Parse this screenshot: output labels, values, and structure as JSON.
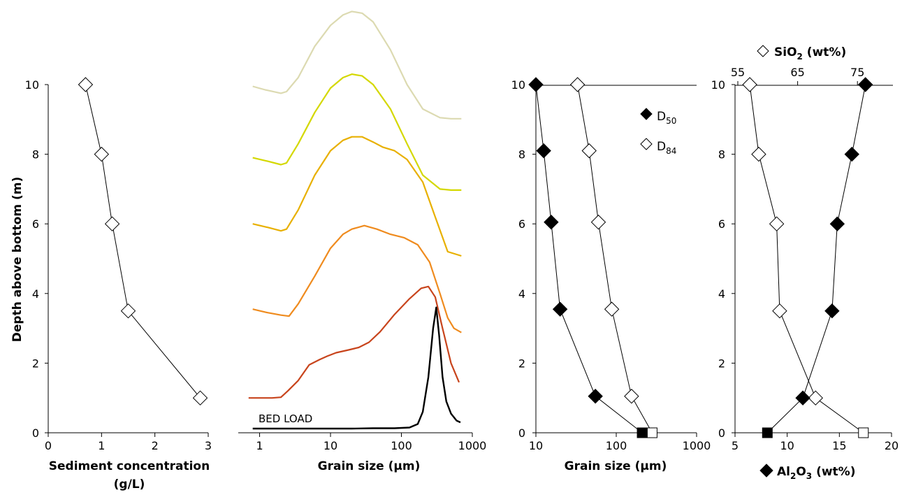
{
  "chart_data": [
    {
      "type": "line",
      "panel": "sediment-concentration",
      "xlabel": "Sediment concentration",
      "xlabel_units": "(g/L)",
      "ylabel": "Depth above bottom (m)",
      "xlim": [
        0,
        3
      ],
      "ylim": [
        0,
        10
      ],
      "xticks": [
        "0",
        "1",
        "2",
        "3"
      ],
      "yticks": [
        "0",
        "2",
        "4",
        "6",
        "8",
        "10"
      ],
      "series": [
        {
          "marker": "open-diamond",
          "x": [
            0.7,
            1.0,
            1.2,
            1.5,
            2.85
          ],
          "y": [
            10.0,
            8.0,
            6.0,
            3.5,
            1.0
          ]
        }
      ]
    },
    {
      "type": "line",
      "panel": "grain-size-distributions",
      "xlabel": "Grain size (µm)",
      "xscale": "log",
      "xlim": [
        0.5,
        1000
      ],
      "xticks": [
        "1",
        "10",
        "100",
        "1000"
      ],
      "annotations": [
        "BED LOAD"
      ],
      "colors": [
        "#dcdab1",
        "#d4d800",
        "#e8b000",
        "#ef8b1e",
        "#c8441c",
        "#000000"
      ],
      "series": [
        {
          "offset_depth_m": 10,
          "color": "#dcdab1",
          "x": [
            0.8,
            1.2,
            2.0,
            2.4,
            3.5,
            6,
            10,
            15,
            20,
            28,
            40,
            70,
            120,
            200,
            350,
            500,
            700
          ],
          "y": [
            9.95,
            9.85,
            9.75,
            9.8,
            10.2,
            11.1,
            11.7,
            12.0,
            12.1,
            12.05,
            11.8,
            11.0,
            10.0,
            9.3,
            9.05,
            9.02,
            9.02
          ]
        },
        {
          "offset_depth_m": 8,
          "color": "#d4d800",
          "x": [
            0.8,
            1.3,
            2.0,
            2.4,
            3.5,
            6,
            10,
            15,
            20,
            28,
            40,
            70,
            120,
            200,
            350,
            500,
            700
          ],
          "y": [
            7.9,
            7.8,
            7.7,
            7.75,
            8.3,
            9.2,
            9.9,
            10.2,
            10.3,
            10.25,
            10.0,
            9.3,
            8.3,
            7.4,
            7.0,
            6.97,
            6.97
          ]
        },
        {
          "offset_depth_m": 6,
          "color": "#e8b000",
          "x": [
            0.8,
            1.3,
            2.0,
            2.4,
            3.5,
            6,
            10,
            15,
            20,
            28,
            40,
            55,
            80,
            120,
            200,
            300,
            450,
            700
          ],
          "y": [
            6.0,
            5.9,
            5.8,
            5.85,
            6.4,
            7.4,
            8.1,
            8.4,
            8.5,
            8.5,
            8.35,
            8.2,
            8.1,
            7.85,
            7.2,
            6.2,
            5.2,
            5.08
          ]
        },
        {
          "offset_depth_m": 4,
          "color": "#ef8b1e",
          "x": [
            0.8,
            1.3,
            2.0,
            2.6,
            3.5,
            6,
            10,
            15,
            20,
            30,
            45,
            70,
            110,
            170,
            250,
            350,
            450,
            550,
            700
          ],
          "y": [
            3.55,
            3.45,
            3.38,
            3.35,
            3.7,
            4.5,
            5.3,
            5.7,
            5.85,
            5.95,
            5.85,
            5.7,
            5.6,
            5.4,
            4.9,
            4.0,
            3.3,
            3.0,
            2.88
          ]
        },
        {
          "offset_depth_m": 1,
          "color": "#c8441c",
          "x": [
            0.7,
            1.0,
            1.5,
            2.0,
            2.5,
            3.5,
            5,
            7,
            9,
            12,
            18,
            25,
            35,
            50,
            80,
            130,
            190,
            240,
            300,
            380,
            500,
            650
          ],
          "y": [
            1.0,
            1.0,
            1.0,
            1.02,
            1.2,
            1.5,
            1.95,
            2.1,
            2.2,
            2.3,
            2.38,
            2.45,
            2.6,
            2.9,
            3.4,
            3.85,
            4.15,
            4.2,
            3.9,
            3.0,
            2.0,
            1.45
          ]
        },
        {
          "label": "BED LOAD",
          "color": "#000000",
          "x": [
            0.8,
            2,
            5,
            10,
            20,
            40,
            80,
            130,
            170,
            200,
            240,
            280,
            310,
            340,
            380,
            430,
            500,
            600,
            680
          ],
          "y": [
            0.12,
            0.12,
            0.12,
            0.12,
            0.12,
            0.13,
            0.13,
            0.15,
            0.25,
            0.6,
            1.6,
            3.0,
            3.6,
            2.8,
            1.6,
            0.9,
            0.55,
            0.35,
            0.3
          ]
        }
      ]
    },
    {
      "type": "scatter",
      "panel": "d50-d84",
      "xlabel": "Grain size (µm)",
      "xscale": "log",
      "xlim": [
        10,
        1000
      ],
      "ylim": [
        0,
        10
      ],
      "xticks": [
        "10",
        "100",
        "1000"
      ],
      "yticks": [
        "0",
        "2",
        "4",
        "6",
        "8",
        "10"
      ],
      "legend": [
        {
          "name": "D",
          "sub": "50",
          "marker": "filled-diamond"
        },
        {
          "name": "D",
          "sub": "84",
          "marker": "open-diamond"
        }
      ],
      "series": [
        {
          "name": "D50",
          "marker": "filled-diamond",
          "x": [
            10,
            12.5,
            15.5,
            20,
            55
          ],
          "y": [
            10,
            8.1,
            6.05,
            3.55,
            1.05
          ]
        },
        {
          "name": "D84",
          "marker": "open-diamond",
          "x": [
            33,
            46,
            60,
            88,
            155
          ],
          "y": [
            10,
            8.1,
            6.05,
            3.55,
            1.05
          ]
        },
        {
          "name": "bed load D50",
          "marker": "filled-square",
          "x": [
            210
          ],
          "y": [
            0
          ]
        },
        {
          "name": "bed load D84",
          "marker": "open-square",
          "x": [
            280
          ],
          "y": [
            0
          ]
        }
      ]
    },
    {
      "type": "scatter",
      "panel": "sio2-al2o3",
      "xlabel": "Al",
      "xlabel_sub1": "2",
      "xlabel_mid": "O",
      "xlabel_sub2": "3",
      "xlabel_tail": " (wt%)",
      "toplabel": "SiO",
      "toplabel_sub": "2",
      "toplabel_tail": " (wt%)",
      "xlim": [
        5,
        20
      ],
      "ylim": [
        0,
        10
      ],
      "xticks": [
        "5",
        "10",
        "15",
        "20"
      ],
      "top_xticks": [
        "55",
        "65",
        "75"
      ],
      "yticks": [
        "0",
        "2",
        "4",
        "6",
        "8",
        "10"
      ],
      "series": [
        {
          "name": "SiO2",
          "axis": "top",
          "marker": "open-diamond",
          "x": [
            57,
            58.5,
            61.5,
            62,
            68,
            76
          ],
          "y": [
            10,
            8.0,
            6.0,
            3.5,
            1.0,
            0
          ]
        },
        {
          "name": "Al2O3",
          "axis": "bottom",
          "marker": "filled-diamond",
          "x": [
            17.5,
            16.2,
            14.8,
            14.3,
            11.5,
            8.1
          ],
          "y": [
            10,
            8.0,
            6.0,
            3.5,
            1.0,
            0
          ]
        }
      ]
    }
  ]
}
